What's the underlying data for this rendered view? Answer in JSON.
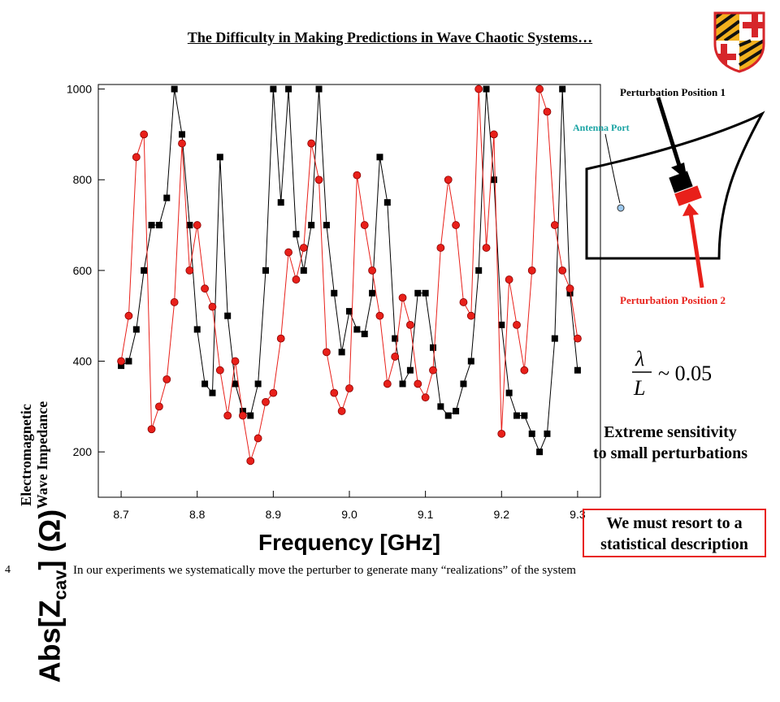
{
  "slide": {
    "title": "The Difficulty in Making Predictions in Wave Chaotic Systems…",
    "page_number": "4",
    "footer": "In our experiments we systematically move the perturber to generate many “realizations” of the system"
  },
  "diagram": {
    "perturbation_1": "Perturbation Position 1",
    "perturbation_2": "Perturbation Position 2",
    "antenna": "Antenna Port",
    "colors": {
      "pos1": "#000000",
      "pos2": "#e8201a",
      "antenna": "#19a3a3"
    }
  },
  "formula": {
    "numerator": "λ",
    "denominator": "L",
    "relation": "~ 0.05"
  },
  "notes": {
    "sensitivity_line1": "Extreme sensitivity",
    "sensitivity_line2": "to small perturbations",
    "statistical_line1": "We must resort to a",
    "statistical_line2": "statistical description"
  },
  "chart_data": {
    "type": "scatter",
    "ylabel_main": "Abs[Z",
    "ylabel_sub_script": "cav",
    "ylabel_unit": "] (Ω)",
    "ylabel_secondary_1": "Electromagnetic",
    "ylabel_secondary_2": "Wave Impedance",
    "xlabel": "Frequency [GHz]",
    "xlim": [
      8.67,
      9.33
    ],
    "ylim": [
      100,
      1010
    ],
    "xticks": [
      "8.7",
      "8.8",
      "8.9",
      "9.0",
      "9.1",
      "9.2",
      "9.3"
    ],
    "xtick_values": [
      8.7,
      8.8,
      8.9,
      9.0,
      9.1,
      9.2,
      9.3
    ],
    "yticks": [
      "200",
      "400",
      "600",
      "800",
      "1000"
    ],
    "ytick_values": [
      200,
      400,
      600,
      800,
      1000
    ],
    "series": [
      {
        "color": "#000000",
        "marker": "square",
        "points": [
          [
            8.7,
            390
          ],
          [
            8.71,
            400
          ],
          [
            8.72,
            470
          ],
          [
            8.73,
            600
          ],
          [
            8.74,
            700
          ],
          [
            8.75,
            700
          ],
          [
            8.76,
            760
          ],
          [
            8.77,
            1000
          ],
          [
            8.78,
            900
          ],
          [
            8.79,
            700
          ],
          [
            8.8,
            470
          ],
          [
            8.81,
            350
          ],
          [
            8.82,
            330
          ],
          [
            8.83,
            850
          ],
          [
            8.84,
            500
          ],
          [
            8.85,
            350
          ],
          [
            8.86,
            290
          ],
          [
            8.87,
            280
          ],
          [
            8.88,
            350
          ],
          [
            8.89,
            600
          ],
          [
            8.9,
            1000
          ],
          [
            8.91,
            750
          ],
          [
            8.92,
            1000
          ],
          [
            8.93,
            680
          ],
          [
            8.94,
            600
          ],
          [
            8.95,
            700
          ],
          [
            8.96,
            1000
          ],
          [
            8.97,
            700
          ],
          [
            8.98,
            550
          ],
          [
            8.99,
            420
          ],
          [
            9.0,
            510
          ],
          [
            9.01,
            470
          ],
          [
            9.02,
            460
          ],
          [
            9.03,
            550
          ],
          [
            9.04,
            850
          ],
          [
            9.05,
            750
          ],
          [
            9.06,
            450
          ],
          [
            9.07,
            350
          ],
          [
            9.08,
            380
          ],
          [
            9.09,
            550
          ],
          [
            9.1,
            550
          ],
          [
            9.11,
            430
          ],
          [
            9.12,
            300
          ],
          [
            9.13,
            280
          ],
          [
            9.14,
            290
          ],
          [
            9.15,
            350
          ],
          [
            9.16,
            400
          ],
          [
            9.17,
            600
          ],
          [
            9.18,
            1000
          ],
          [
            9.19,
            800
          ],
          [
            9.2,
            480
          ],
          [
            9.21,
            330
          ],
          [
            9.22,
            280
          ],
          [
            9.23,
            280
          ],
          [
            9.24,
            240
          ],
          [
            9.25,
            200
          ],
          [
            9.26,
            240
          ],
          [
            9.27,
            450
          ],
          [
            9.28,
            1000
          ],
          [
            9.29,
            550
          ],
          [
            9.3,
            380
          ]
        ]
      },
      {
        "color": "#e8201a",
        "marker": "circle",
        "points": [
          [
            8.7,
            400
          ],
          [
            8.71,
            500
          ],
          [
            8.72,
            850
          ],
          [
            8.73,
            900
          ],
          [
            8.74,
            250
          ],
          [
            8.75,
            300
          ],
          [
            8.76,
            360
          ],
          [
            8.77,
            530
          ],
          [
            8.78,
            880
          ],
          [
            8.79,
            600
          ],
          [
            8.8,
            700
          ],
          [
            8.81,
            560
          ],
          [
            8.82,
            520
          ],
          [
            8.83,
            380
          ],
          [
            8.84,
            280
          ],
          [
            8.85,
            400
          ],
          [
            8.86,
            280
          ],
          [
            8.87,
            180
          ],
          [
            8.88,
            230
          ],
          [
            8.89,
            310
          ],
          [
            8.9,
            330
          ],
          [
            8.91,
            450
          ],
          [
            8.92,
            640
          ],
          [
            8.93,
            580
          ],
          [
            8.94,
            650
          ],
          [
            8.95,
            880
          ],
          [
            8.96,
            800
          ],
          [
            8.97,
            420
          ],
          [
            8.98,
            330
          ],
          [
            8.99,
            290
          ],
          [
            9.0,
            340
          ],
          [
            9.01,
            810
          ],
          [
            9.02,
            700
          ],
          [
            9.03,
            600
          ],
          [
            9.04,
            500
          ],
          [
            9.05,
            350
          ],
          [
            9.06,
            410
          ],
          [
            9.07,
            540
          ],
          [
            9.08,
            480
          ],
          [
            9.09,
            350
          ],
          [
            9.1,
            320
          ],
          [
            9.11,
            380
          ],
          [
            9.12,
            650
          ],
          [
            9.13,
            800
          ],
          [
            9.14,
            700
          ],
          [
            9.15,
            530
          ],
          [
            9.16,
            500
          ],
          [
            9.17,
            1000
          ],
          [
            9.18,
            650
          ],
          [
            9.19,
            900
          ],
          [
            9.2,
            240
          ],
          [
            9.21,
            580
          ],
          [
            9.22,
            480
          ],
          [
            9.23,
            380
          ],
          [
            9.24,
            600
          ],
          [
            9.25,
            1000
          ],
          [
            9.26,
            950
          ],
          [
            9.27,
            700
          ],
          [
            9.28,
            600
          ],
          [
            9.29,
            560
          ],
          [
            9.3,
            450
          ]
        ]
      }
    ]
  }
}
